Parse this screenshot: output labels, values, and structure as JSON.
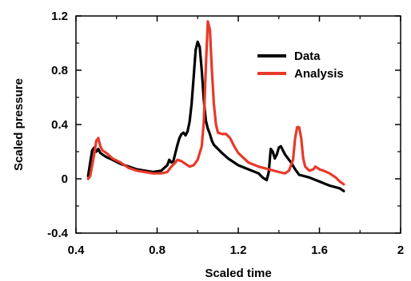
{
  "chart_data": {
    "type": "line",
    "xlabel": "Scaled time",
    "ylabel": "Scaled pressure",
    "xlim": [
      0.4,
      2.0
    ],
    "ylim": [
      -0.4,
      1.2
    ],
    "x_ticks": [
      "0.4",
      "0.8",
      "1.2",
      "1.6",
      "2"
    ],
    "y_ticks": [
      "1.2",
      "0.8",
      "0.4",
      "0",
      "-0.4"
    ],
    "x_tick_values": [
      0.4,
      0.8,
      1.2,
      1.6,
      2.0
    ],
    "y_tick_values": [
      1.2,
      0.8,
      0.4,
      0,
      -0.4
    ],
    "legend_position": "top-right",
    "grid": false,
    "series": [
      {
        "name": "Data",
        "color": "#000000",
        "points": [
          [
            0.46,
            0.02
          ],
          [
            0.47,
            0.12
          ],
          [
            0.48,
            0.21
          ],
          [
            0.49,
            0.23
          ],
          [
            0.5,
            0.2
          ],
          [
            0.51,
            0.22
          ],
          [
            0.52,
            0.19
          ],
          [
            0.53,
            0.18
          ],
          [
            0.55,
            0.16
          ],
          [
            0.58,
            0.14
          ],
          [
            0.62,
            0.11
          ],
          [
            0.66,
            0.09
          ],
          [
            0.7,
            0.07
          ],
          [
            0.74,
            0.06
          ],
          [
            0.78,
            0.05
          ],
          [
            0.82,
            0.06
          ],
          [
            0.85,
            0.1
          ],
          [
            0.86,
            0.14
          ],
          [
            0.87,
            0.12
          ],
          [
            0.88,
            0.13
          ],
          [
            0.89,
            0.19
          ],
          [
            0.9,
            0.25
          ],
          [
            0.91,
            0.3
          ],
          [
            0.92,
            0.33
          ],
          [
            0.93,
            0.34
          ],
          [
            0.94,
            0.32
          ],
          [
            0.95,
            0.35
          ],
          [
            0.96,
            0.42
          ],
          [
            0.97,
            0.55
          ],
          [
            0.98,
            0.75
          ],
          [
            0.99,
            0.95
          ],
          [
            1.0,
            1.01
          ],
          [
            1.01,
            0.97
          ],
          [
            1.02,
            0.8
          ],
          [
            1.03,
            0.58
          ],
          [
            1.04,
            0.43
          ],
          [
            1.05,
            0.37
          ],
          [
            1.06,
            0.33
          ],
          [
            1.07,
            0.28
          ],
          [
            1.08,
            0.25
          ],
          [
            1.1,
            0.22
          ],
          [
            1.12,
            0.19
          ],
          [
            1.15,
            0.15
          ],
          [
            1.2,
            0.1
          ],
          [
            1.25,
            0.07
          ],
          [
            1.3,
            0.04
          ],
          [
            1.32,
            0.01
          ],
          [
            1.33,
            0.0
          ],
          [
            1.34,
            -0.01
          ],
          [
            1.35,
            0.05
          ],
          [
            1.36,
            0.22
          ],
          [
            1.37,
            0.2
          ],
          [
            1.38,
            0.15
          ],
          [
            1.39,
            0.18
          ],
          [
            1.4,
            0.23
          ],
          [
            1.41,
            0.24
          ],
          [
            1.42,
            0.21
          ],
          [
            1.43,
            0.18
          ],
          [
            1.44,
            0.16
          ],
          [
            1.46,
            0.12
          ],
          [
            1.48,
            0.07
          ],
          [
            1.5,
            0.03
          ],
          [
            1.55,
            0.01
          ],
          [
            1.6,
            -0.02
          ],
          [
            1.65,
            -0.05
          ],
          [
            1.7,
            -0.07
          ],
          [
            1.72,
            -0.09
          ]
        ]
      },
      {
        "name": "Analysis",
        "color": "#e8392a",
        "points": [
          [
            0.46,
            0.0
          ],
          [
            0.47,
            0.02
          ],
          [
            0.48,
            0.1
          ],
          [
            0.49,
            0.18
          ],
          [
            0.5,
            0.28
          ],
          [
            0.51,
            0.3
          ],
          [
            0.52,
            0.24
          ],
          [
            0.53,
            0.21
          ],
          [
            0.55,
            0.19
          ],
          [
            0.58,
            0.15
          ],
          [
            0.62,
            0.12
          ],
          [
            0.66,
            0.08
          ],
          [
            0.7,
            0.06
          ],
          [
            0.74,
            0.05
          ],
          [
            0.78,
            0.04
          ],
          [
            0.82,
            0.04
          ],
          [
            0.85,
            0.05
          ],
          [
            0.87,
            0.09
          ],
          [
            0.89,
            0.12
          ],
          [
            0.9,
            0.14
          ],
          [
            0.92,
            0.13
          ],
          [
            0.94,
            0.11
          ],
          [
            0.96,
            0.09
          ],
          [
            0.98,
            0.1
          ],
          [
            1.0,
            0.14
          ],
          [
            1.02,
            0.24
          ],
          [
            1.03,
            0.42
          ],
          [
            1.04,
            0.82
          ],
          [
            1.05,
            1.16
          ],
          [
            1.06,
            1.1
          ],
          [
            1.07,
            0.8
          ],
          [
            1.08,
            0.55
          ],
          [
            1.09,
            0.4
          ],
          [
            1.1,
            0.34
          ],
          [
            1.12,
            0.33
          ],
          [
            1.14,
            0.33
          ],
          [
            1.16,
            0.3
          ],
          [
            1.18,
            0.24
          ],
          [
            1.2,
            0.19
          ],
          [
            1.25,
            0.12
          ],
          [
            1.3,
            0.09
          ],
          [
            1.35,
            0.07
          ],
          [
            1.4,
            0.05
          ],
          [
            1.43,
            0.04
          ],
          [
            1.45,
            0.06
          ],
          [
            1.47,
            0.14
          ],
          [
            1.48,
            0.3
          ],
          [
            1.49,
            0.38
          ],
          [
            1.5,
            0.38
          ],
          [
            1.51,
            0.3
          ],
          [
            1.52,
            0.15
          ],
          [
            1.53,
            0.09
          ],
          [
            1.55,
            0.06
          ],
          [
            1.57,
            0.07
          ],
          [
            1.58,
            0.09
          ],
          [
            1.59,
            0.08
          ],
          [
            1.6,
            0.07
          ],
          [
            1.62,
            0.06
          ],
          [
            1.65,
            0.04
          ],
          [
            1.68,
            0.01
          ],
          [
            1.7,
            -0.02
          ],
          [
            1.72,
            -0.04
          ]
        ]
      }
    ]
  }
}
